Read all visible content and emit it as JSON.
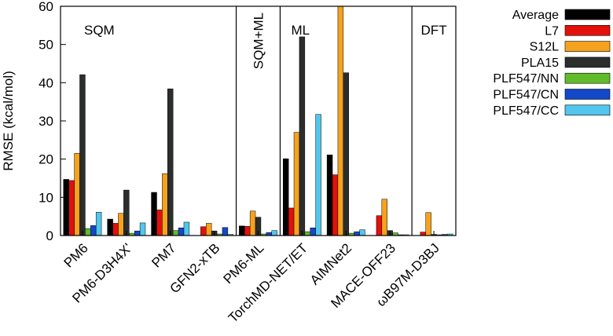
{
  "chart_data": {
    "type": "bar",
    "ylabel": "RMSE (kcal/mol)",
    "ylim": [
      0,
      60
    ],
    "yticks": [
      0,
      10,
      20,
      30,
      40,
      50,
      60
    ],
    "grid": false,
    "legend_position": "top-right",
    "categories": [
      "PM6",
      "PM6-D3H4X'",
      "PM7",
      "GFN2-xTB",
      "PM6-ML",
      "TorchMD-NET/ET",
      "AIMNet2",
      "MACE-OFF23",
      "ωB97M-D3BJ"
    ],
    "groups": [
      {
        "label": "SQM",
        "categories": [
          "PM6",
          "PM6-D3H4X'",
          "PM7",
          "GFN2-xTB"
        ]
      },
      {
        "label": "SQM+ML",
        "categories": [
          "PM6-ML"
        ]
      },
      {
        "label": "ML",
        "categories": [
          "TorchMD-NET/ET",
          "AIMNet2",
          "MACE-OFF23"
        ]
      },
      {
        "label": "DFT",
        "categories": [
          "ωB97M-D3BJ"
        ]
      }
    ],
    "series": [
      {
        "name": "Average",
        "color": "#000000",
        "values": [
          14.7,
          4.3,
          11.3,
          0,
          2.5,
          20.1,
          21.1,
          0,
          0
        ]
      },
      {
        "name": "L7",
        "color": "#e3100b",
        "values": [
          14.4,
          3.2,
          6.7,
          2.3,
          2.4,
          7.2,
          15.9,
          5.2,
          0.9
        ]
      },
      {
        "name": "S12L",
        "color": "#f5a21e",
        "values": [
          21.5,
          5.8,
          16.2,
          3.2,
          6.4,
          27.0,
          60.0,
          9.5,
          6.0
        ]
      },
      {
        "name": "PLA15",
        "color": "#2b2e2c",
        "values": [
          42.1,
          11.9,
          38.4,
          1.2,
          4.8,
          52.0,
          42.6,
          1.3,
          0.3
        ]
      },
      {
        "name": "PLF547/NN",
        "color": "#62bb2b",
        "values": [
          1.8,
          0.6,
          1.3,
          0.4,
          0.4,
          1.0,
          0.6,
          0.7,
          0.2
        ]
      },
      {
        "name": "PLF547/CN",
        "color": "#1349c8",
        "values": [
          2.6,
          1.2,
          2.0,
          2.1,
          0.8,
          2.0,
          1.0,
          0.2,
          0.3
        ]
      },
      {
        "name": "PLF547/CC",
        "color": "#52c6ec",
        "values": [
          6.1,
          3.3,
          3.5,
          0.3,
          1.3,
          31.7,
          1.5,
          0.2,
          0.4
        ]
      }
    ]
  }
}
